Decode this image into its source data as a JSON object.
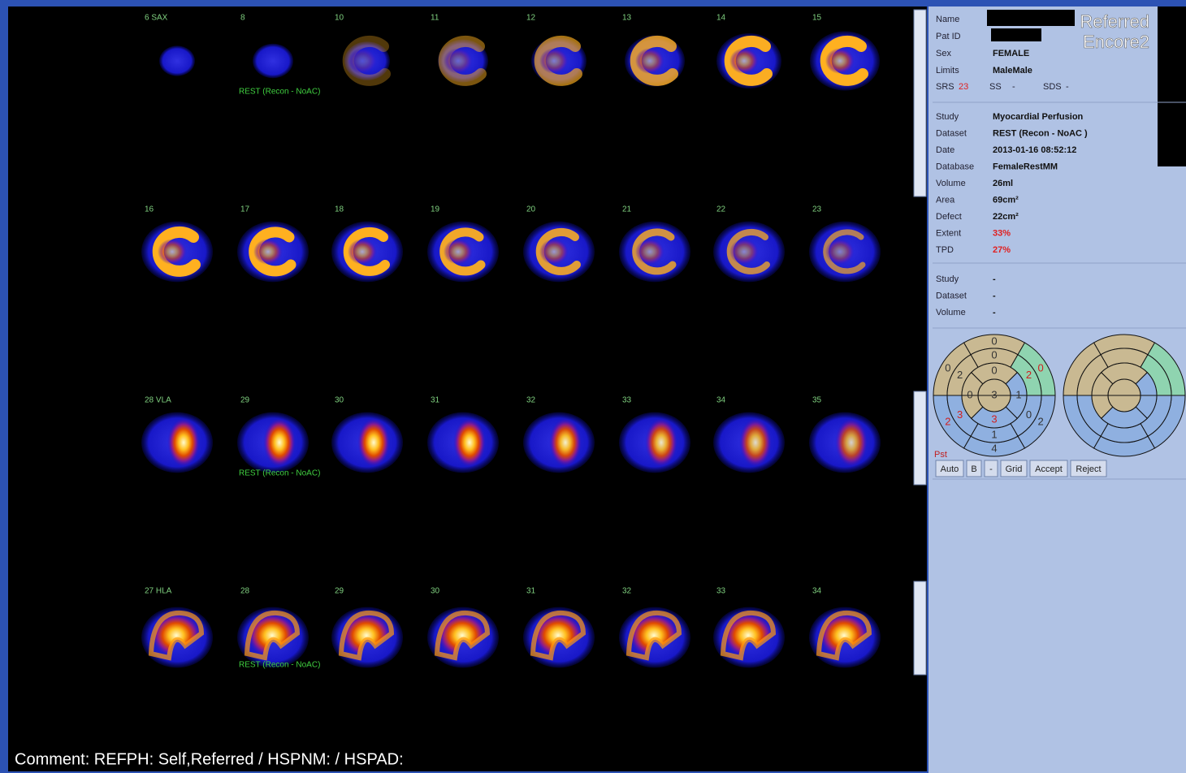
{
  "viewer": {
    "rows": [
      {
        "slices": [
          "6 SAX",
          "8",
          "10",
          "11",
          "12",
          "13",
          "14",
          "15"
        ],
        "overlay": "REST (Recon - NoAC)"
      },
      {
        "slices": [
          "16",
          "17",
          "18",
          "19",
          "20",
          "21",
          "22",
          "23"
        ]
      },
      {
        "slices": [
          "28 VLA",
          "29",
          "30",
          "31",
          "32",
          "33",
          "34",
          "35"
        ],
        "overlay": "REST (Recon - NoAC)"
      },
      {
        "slices": [
          "27 HLA",
          "28",
          "29",
          "30",
          "31",
          "32",
          "33",
          "34"
        ],
        "overlay": "REST (Recon - NoAC)"
      }
    ],
    "comment": "Comment: REFPH: Self,Referred / HSPNM:  / HSPAD:"
  },
  "header_overlay": [
    "Referred",
    "Encore2"
  ],
  "patient": [
    {
      "label": "Name"
    },
    {
      "label": "Pat ID"
    },
    {
      "label": "Sex",
      "value": "FEMALE"
    },
    {
      "label": "Limits",
      "value": "MaleMale"
    }
  ],
  "scores": [
    {
      "label": "SRS",
      "value": "23",
      "color": "#e02020"
    },
    {
      "label": "SS",
      "value": "-"
    },
    {
      "label": "SDS",
      "value": "-"
    }
  ],
  "study": [
    {
      "label": "Study",
      "value": "Myocardial Perfusion"
    },
    {
      "label": "Dataset",
      "value": "REST (Recon - NoAC )"
    },
    {
      "label": "Date",
      "value": "2013-01-16 08:52:12"
    },
    {
      "label": "Database",
      "value": "FemaleRestMM"
    },
    {
      "label": "Volume",
      "value": "26ml"
    },
    {
      "label": "Area",
      "value": "69cm²"
    },
    {
      "label": "Defect",
      "value": "22cm²"
    },
    {
      "label": "Extent",
      "value": "33%",
      "color": "#e02020"
    },
    {
      "label": "TPD",
      "value": "27%",
      "color": "#e02020"
    }
  ],
  "study2": [
    {
      "label": "Study",
      "value": "-"
    },
    {
      "label": "Dataset",
      "value": "-"
    },
    {
      "label": "Volume",
      "value": "-"
    }
  ],
  "polar_scores": [
    "0",
    "0",
    "2",
    "4",
    "2",
    "0",
    "0",
    "2",
    "3",
    "1",
    "0",
    "2",
    "0",
    "0",
    "3",
    "1",
    "3"
  ],
  "polar_label": "Pst",
  "buttons": [
    "Auto",
    "B",
    "-",
    "Grid",
    "Accept",
    "Reject"
  ]
}
